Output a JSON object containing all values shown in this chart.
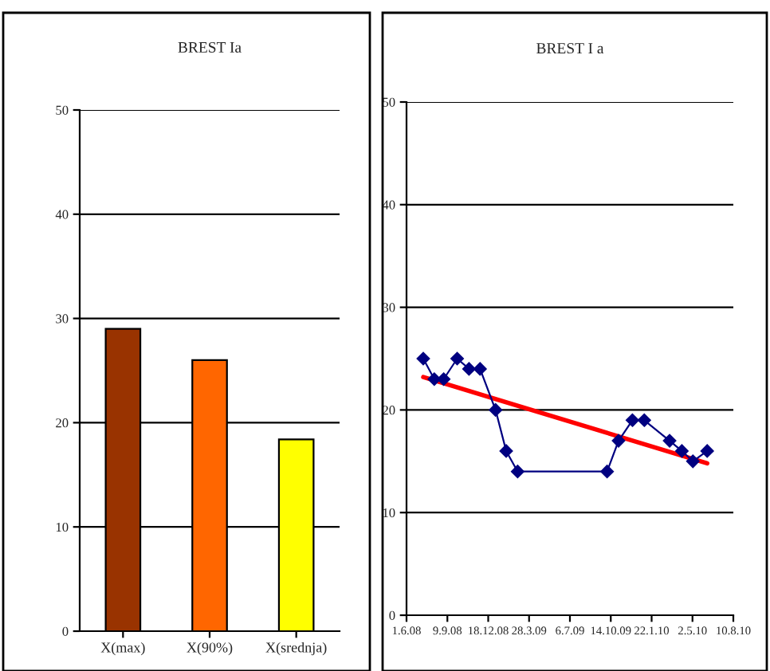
{
  "chart_data": [
    {
      "type": "bar",
      "title": "BREST Ia",
      "categories": [
        "X(max)",
        "X(90%)",
        "X(srednja)"
      ],
      "values": [
        29,
        26,
        18.4
      ],
      "colors": [
        "#993300",
        "#ff6600",
        "#ffff00"
      ],
      "ylim": [
        0,
        50
      ],
      "yticks": [
        0,
        10,
        20,
        30,
        40,
        50
      ],
      "grid": "y"
    },
    {
      "type": "line",
      "title": "BREST I a",
      "xlim": [
        "2008-06-01",
        "2010-08-10"
      ],
      "xticks": [
        {
          "value": "2008-06-01",
          "label": "1.6.08"
        },
        {
          "value": "2008-09-09",
          "label": "9.9.08"
        },
        {
          "value": "2008-12-18",
          "label": "18.12.08"
        },
        {
          "value": "2009-03-28",
          "label": "28.3.09"
        },
        {
          "value": "2009-07-06",
          "label": "6.7.09"
        },
        {
          "value": "2009-10-14",
          "label": "14.10.09"
        },
        {
          "value": "2010-01-22",
          "label": "22.1.10"
        },
        {
          "value": "2010-05-02",
          "label": "2.5.10"
        },
        {
          "value": "2010-08-10",
          "label": "10.8.10"
        }
      ],
      "ylim": [
        0,
        50
      ],
      "yticks": [
        0,
        10,
        20,
        30,
        40,
        50
      ],
      "grid": "y",
      "series": [
        {
          "color": "#000080",
          "marker": "diamond",
          "x": [
            "2008-07-12",
            "2008-08-08",
            "2008-08-31",
            "2008-10-03",
            "2008-11-01",
            "2008-11-28",
            "2009-01-05",
            "2009-01-31",
            "2009-02-28",
            "2009-10-05",
            "2009-11-02",
            "2009-12-06",
            "2010-01-04",
            "2010-03-07",
            "2010-04-06",
            "2010-05-03",
            "2010-06-07"
          ],
          "values": [
            25,
            23,
            23,
            25,
            24,
            24,
            20,
            16,
            14,
            14,
            17,
            19,
            19,
            17,
            16,
            15,
            16
          ]
        },
        {
          "color": "#ff0000",
          "marker": "none",
          "x": [
            "2008-07-12",
            "2010-06-07"
          ],
          "values": [
            23.2,
            14.8
          ]
        }
      ]
    }
  ]
}
